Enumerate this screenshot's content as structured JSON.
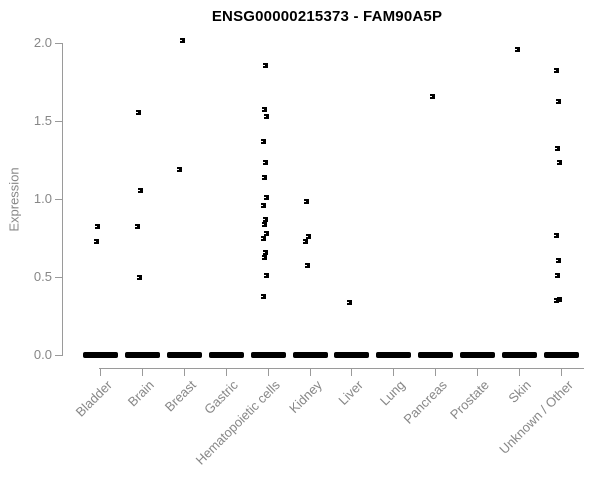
{
  "title": "ENSG00000215373 - FAM90A5P",
  "colors": {
    "points": "#000000",
    "axis_text": "#878787",
    "axis_line": "#9a9a9a",
    "title": "#000000",
    "background": "#ffffff"
  },
  "chart_data": {
    "type": "scatter",
    "subtype": "strip-plot",
    "title": "ENSG00000215373 - FAM90A5P",
    "xlabel": "",
    "ylabel": "Expression",
    "ylim": [
      0.0,
      2.0
    ],
    "yticks": [
      0.0,
      0.5,
      1.0,
      1.5,
      2.0
    ],
    "grid": false,
    "legend": "none",
    "categories": [
      "Bladder",
      "Brain",
      "Breast",
      "Gastric",
      "Hematopoietic cells",
      "Kidney",
      "Liver",
      "Lung",
      "Pancreas",
      "Prostate",
      "Skin",
      "Unknown / Other"
    ],
    "series": [
      {
        "name": "Bladder",
        "zero_cluster": true,
        "values": [
          0.83,
          0.73
        ]
      },
      {
        "name": "Brain",
        "zero_cluster": true,
        "values": [
          1.56,
          1.06,
          0.83,
          0.5
        ]
      },
      {
        "name": "Breast",
        "zero_cluster": true,
        "values": [
          2.02,
          1.19
        ]
      },
      {
        "name": "Gastric",
        "zero_cluster": true,
        "values": []
      },
      {
        "name": "Hematopoietic cells",
        "zero_cluster": true,
        "values": [
          1.86,
          1.58,
          1.53,
          1.37,
          1.24,
          1.14,
          1.01,
          0.96,
          0.87,
          0.84,
          0.78,
          0.75,
          0.66,
          0.63,
          0.51,
          0.38
        ]
      },
      {
        "name": "Kidney",
        "zero_cluster": true,
        "values": [
          0.99,
          0.76,
          0.73,
          0.58
        ]
      },
      {
        "name": "Liver",
        "zero_cluster": true,
        "values": [
          0.34
        ]
      },
      {
        "name": "Lung",
        "zero_cluster": true,
        "values": []
      },
      {
        "name": "Pancreas",
        "zero_cluster": true,
        "values": [
          1.66
        ]
      },
      {
        "name": "Prostate",
        "zero_cluster": true,
        "values": []
      },
      {
        "name": "Skin",
        "zero_cluster": true,
        "values": [
          1.96
        ]
      },
      {
        "name": "Unknown / Other",
        "zero_cluster": true,
        "values": [
          1.83,
          1.63,
          1.33,
          1.24,
          0.77,
          0.61,
          0.51,
          0.36,
          0.35
        ]
      }
    ],
    "zero_cluster_note": "every category shows a dense cluster of overlapping points at expression 0.0 rendered as a thick black dash"
  }
}
